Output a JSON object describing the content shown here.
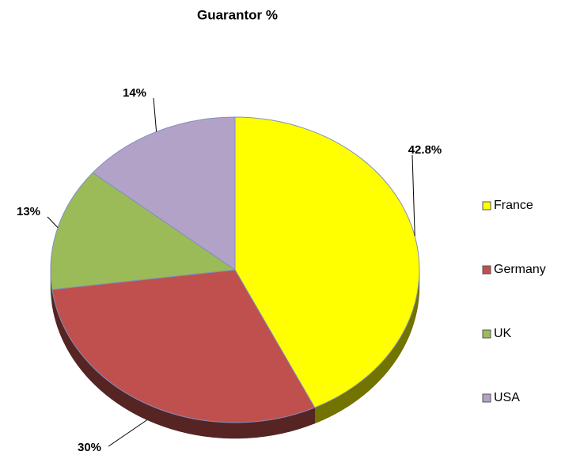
{
  "chart_data": {
    "type": "pie",
    "title": "Guarantor %",
    "categories": [
      "France",
      "Germany",
      "UK",
      "USA"
    ],
    "values": [
      42.8,
      30,
      13,
      14
    ],
    "value_labels": [
      "42.8%",
      "30%",
      "13%",
      "14%"
    ],
    "colors": [
      "#ffff00",
      "#c0504d",
      "#9bbb59",
      "#b3a2c7"
    ],
    "legend": "right"
  }
}
